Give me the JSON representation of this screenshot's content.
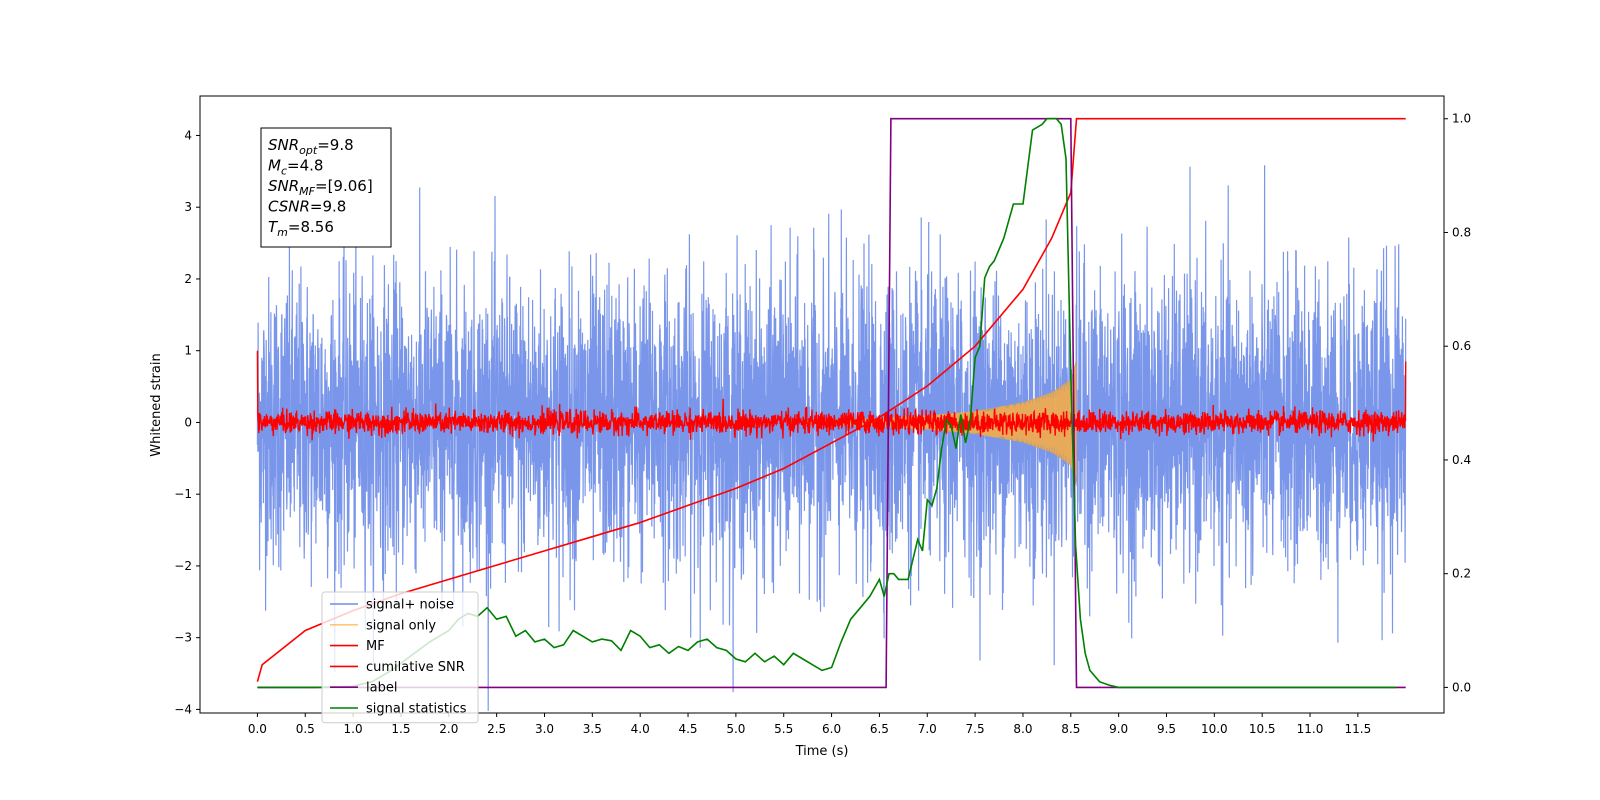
{
  "chart_data": {
    "type": "line",
    "xlabel": "Time (s)",
    "ylabel": "Whitened strain",
    "xlim": [
      -0.6,
      12.4
    ],
    "ylim": [
      -4.05,
      4.55
    ],
    "ylim_right": [
      -0.045,
      1.04
    ],
    "x_ticks": [
      "0.0",
      "0.5",
      "1.0",
      "1.5",
      "2.0",
      "2.5",
      "3.0",
      "3.5",
      "4.0",
      "4.5",
      "5.0",
      "5.5",
      "6.0",
      "6.5",
      "7.0",
      "7.5",
      "8.0",
      "8.5",
      "9.0",
      "9.5",
      "10.0",
      "10.5",
      "11.0",
      "11.5"
    ],
    "y_ticks": [
      "−4",
      "−3",
      "−2",
      "−1",
      "0",
      "1",
      "2",
      "3",
      "4"
    ],
    "y_ticks_right": [
      "0.0",
      "0.2",
      "0.4",
      "0.6",
      "0.8",
      "1.0"
    ],
    "legend_placement": "lower-left",
    "grid": false,
    "annotation": {
      "lines": [
        {
          "base": "SNR",
          "sub": "opt",
          "value": "=9.8"
        },
        {
          "base": "M",
          "sub": "c",
          "value": "=4.8"
        },
        {
          "base": "SNR",
          "sub": "MF",
          "value": "=[9.06]"
        },
        {
          "base": "CSNR",
          "sub": "",
          "value": "=9.8"
        },
        {
          "base": "T",
          "sub": "m",
          "value": "=8.56"
        }
      ]
    },
    "series": [
      {
        "name": "signal+ noise",
        "axis": "left",
        "color": "#4169e1",
        "kind": "noise",
        "x_range": [
          0,
          12
        ],
        "amplitude": 1.25
      },
      {
        "name": "signal only",
        "axis": "left",
        "color": "#ffb347",
        "kind": "chirp",
        "x_range": [
          5.7,
          8.56
        ],
        "envelope": [
          [
            5.7,
            0.02
          ],
          [
            6.5,
            0.06
          ],
          [
            7.0,
            0.1
          ],
          [
            7.5,
            0.16
          ],
          [
            8.0,
            0.28
          ],
          [
            8.3,
            0.42
          ],
          [
            8.5,
            0.6
          ],
          [
            8.56,
            0.9
          ]
        ]
      },
      {
        "name": "MF",
        "axis": "left",
        "color": "#ff0000",
        "kind": "noise",
        "x_range": [
          0,
          12
        ],
        "amplitude": 0.1
      },
      {
        "name": "cumilative SNR",
        "axis": "right",
        "color": "#ff0000",
        "kind": "line",
        "x": [
          0.0,
          0.05,
          0.5,
          1.0,
          1.5,
          2.0,
          2.5,
          3.0,
          3.5,
          4.0,
          4.5,
          5.0,
          5.5,
          6.0,
          6.5,
          7.0,
          7.5,
          8.0,
          8.3,
          8.5,
          8.56,
          9.0,
          10.0,
          11.0,
          12.0
        ],
        "y": [
          0.01,
          0.04,
          0.1,
          0.135,
          0.165,
          0.19,
          0.215,
          0.24,
          0.265,
          0.29,
          0.32,
          0.35,
          0.385,
          0.43,
          0.475,
          0.53,
          0.6,
          0.7,
          0.79,
          0.87,
          1.0,
          1.0,
          1.0,
          1.0,
          1.0
        ]
      },
      {
        "name": "label",
        "axis": "right",
        "color": "#800080",
        "kind": "line",
        "x": [
          0.0,
          6.57,
          6.62,
          8.5,
          8.56,
          12.0
        ],
        "y": [
          0.0,
          0.0,
          1.0,
          1.0,
          0.0,
          0.0
        ]
      },
      {
        "name": "signal statistics",
        "axis": "right",
        "color": "#008000",
        "kind": "line",
        "x": [
          0.0,
          0.6,
          1.0,
          1.2,
          1.4,
          1.6,
          1.8,
          2.0,
          2.1,
          2.2,
          2.3,
          2.4,
          2.5,
          2.6,
          2.7,
          2.8,
          2.9,
          3.0,
          3.1,
          3.2,
          3.3,
          3.4,
          3.5,
          3.6,
          3.7,
          3.8,
          3.9,
          4.0,
          4.1,
          4.2,
          4.3,
          4.4,
          4.5,
          4.6,
          4.7,
          4.8,
          4.9,
          5.0,
          5.1,
          5.2,
          5.3,
          5.4,
          5.5,
          5.6,
          5.7,
          5.8,
          5.9,
          6.0,
          6.1,
          6.2,
          6.3,
          6.4,
          6.5,
          6.55,
          6.6,
          6.65,
          6.7,
          6.8,
          6.9,
          6.95,
          7.0,
          7.05,
          7.1,
          7.15,
          7.2,
          7.25,
          7.3,
          7.35,
          7.4,
          7.45,
          7.5,
          7.55,
          7.6,
          7.65,
          7.7,
          7.8,
          7.9,
          8.0,
          8.1,
          8.2,
          8.25,
          8.3,
          8.35,
          8.4,
          8.45,
          8.5,
          8.55,
          8.6,
          8.65,
          8.7,
          8.8,
          8.9,
          9.0,
          9.5,
          10.0,
          11.0,
          11.9
        ],
        "y": [
          0.0,
          0.0,
          0.002,
          0.01,
          0.03,
          0.055,
          0.08,
          0.1,
          0.12,
          0.13,
          0.125,
          0.14,
          0.12,
          0.125,
          0.09,
          0.1,
          0.08,
          0.085,
          0.07,
          0.075,
          0.1,
          0.09,
          0.08,
          0.085,
          0.082,
          0.065,
          0.1,
          0.09,
          0.07,
          0.075,
          0.06,
          0.072,
          0.065,
          0.08,
          0.085,
          0.07,
          0.065,
          0.05,
          0.045,
          0.06,
          0.045,
          0.055,
          0.04,
          0.06,
          0.05,
          0.04,
          0.03,
          0.035,
          0.08,
          0.12,
          0.14,
          0.16,
          0.19,
          0.16,
          0.2,
          0.2,
          0.19,
          0.19,
          0.26,
          0.24,
          0.33,
          0.32,
          0.35,
          0.42,
          0.47,
          0.46,
          0.42,
          0.48,
          0.43,
          0.47,
          0.58,
          0.6,
          0.72,
          0.74,
          0.75,
          0.79,
          0.85,
          0.85,
          0.98,
          0.99,
          1.0,
          1.0,
          1.0,
          0.99,
          0.93,
          0.55,
          0.25,
          0.12,
          0.06,
          0.03,
          0.01,
          0.004,
          0.0,
          0.0,
          0.0,
          0.0,
          0.0
        ]
      }
    ]
  }
}
